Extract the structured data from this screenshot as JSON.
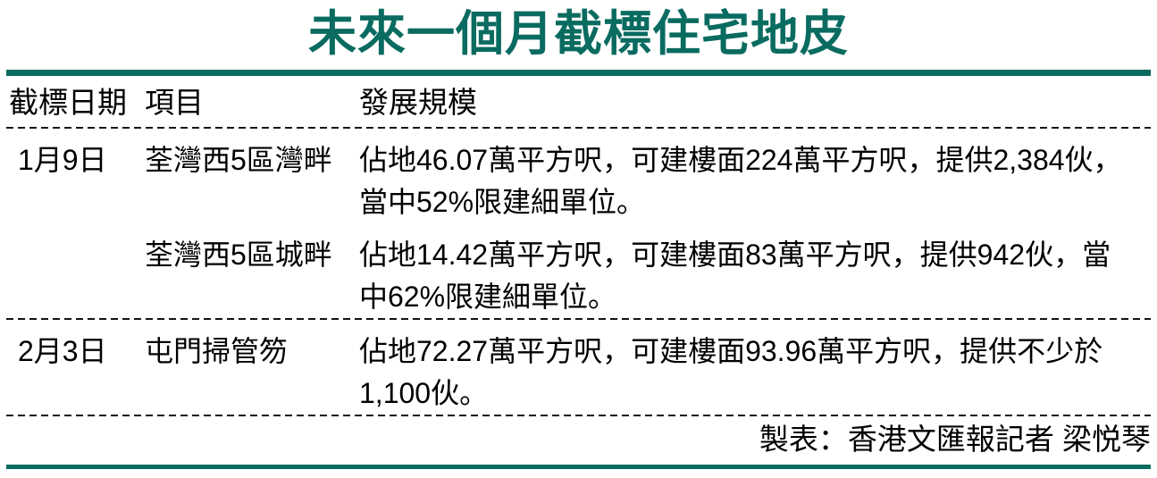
{
  "colors": {
    "accent": "#0a6b60",
    "text": "#000000",
    "background": "#ffffff"
  },
  "title": "未來一個月截標住宅地皮",
  "table": {
    "headers": {
      "date": "截標日期",
      "project": "項目",
      "scale": "發展規模"
    },
    "rows": [
      {
        "date": "1月9日",
        "project": "荃灣西5區灣畔",
        "desc_lines": [
          "佔地46.07萬平方呎，可建樓面224萬平方呎，提供2,384伙，",
          "當中52%限建細單位。"
        ]
      },
      {
        "date": "",
        "project": "荃灣西5區城畔",
        "desc_lines": [
          "佔地14.42萬平方呎，可建樓面83萬平方呎，提供942伙，當",
          "中62%限建細單位。"
        ]
      },
      {
        "date": "2月3日",
        "project": "屯門掃管笏",
        "desc_lines": [
          "佔地72.27萬平方呎，可建樓面93.96萬平方呎，提供不少於",
          "1,100伙。"
        ]
      }
    ]
  },
  "footer": {
    "credit": "製表：香港文匯報記者 梁悦琴"
  },
  "chart_data": {
    "type": "table",
    "title": "未來一個月截標住宅地皮",
    "columns": [
      "截標日期",
      "項目",
      "發展規模"
    ],
    "rows": [
      [
        "1月9日",
        "荃灣西5區灣畔",
        "佔地46.07萬平方呎，可建樓面224萬平方呎，提供2,384伙，當中52%限建細單位。"
      ],
      [
        "1月9日",
        "荃灣西5區城畔",
        "佔地14.42萬平方呎，可建樓面83萬平方呎，提供942伙，當中62%限建細單位。"
      ],
      [
        "2月3日",
        "屯門掃管笏",
        "佔地72.27萬平方呎，可建樓面93.96萬平方呎，提供不少於1,100伙。"
      ]
    ],
    "source": "製表：香港文匯報記者 梁悦琴"
  }
}
